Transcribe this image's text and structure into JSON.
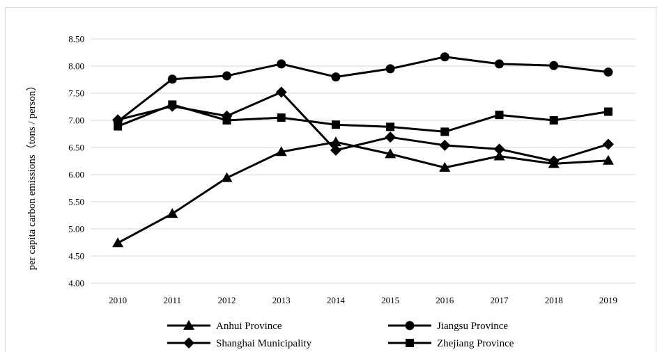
{
  "chart_data": {
    "type": "line",
    "title": "",
    "xlabel": "",
    "ylabel": "per capita carbon emissions（tons / person）",
    "ylim": [
      4.0,
      8.5
    ],
    "y_ticks": [
      "4.00",
      "4.50",
      "5.00",
      "5.50",
      "6.00",
      "6.50",
      "7.00",
      "7.50",
      "8.00",
      "8.50"
    ],
    "categories": [
      "2010",
      "2011",
      "2012",
      "2013",
      "2014",
      "2015",
      "2016",
      "2017",
      "2018",
      "2019"
    ],
    "grid": "horizontal",
    "legend_position": "bottom",
    "series": [
      {
        "name": "Anhui Province",
        "marker": "triangle",
        "color": "#000000",
        "values": [
          4.74,
          5.28,
          5.94,
          6.42,
          6.6,
          6.38,
          6.13,
          6.34,
          6.2,
          6.26
        ]
      },
      {
        "name": "Jiangsu Province",
        "marker": "circle",
        "color": "#000000",
        "values": [
          6.98,
          7.76,
          7.82,
          8.04,
          7.8,
          7.95,
          8.17,
          8.04,
          8.01,
          7.89
        ]
      },
      {
        "name": "Shanghai Municipality",
        "marker": "diamond",
        "color": "#000000",
        "values": [
          7.01,
          7.26,
          7.08,
          7.52,
          6.45,
          6.69,
          6.54,
          6.47,
          6.25,
          6.56
        ]
      },
      {
        "name": "Zhejiang Province",
        "marker": "square",
        "color": "#000000",
        "values": [
          6.89,
          7.29,
          7.0,
          7.05,
          6.92,
          6.88,
          6.79,
          7.1,
          7.0,
          7.16
        ]
      }
    ]
  }
}
